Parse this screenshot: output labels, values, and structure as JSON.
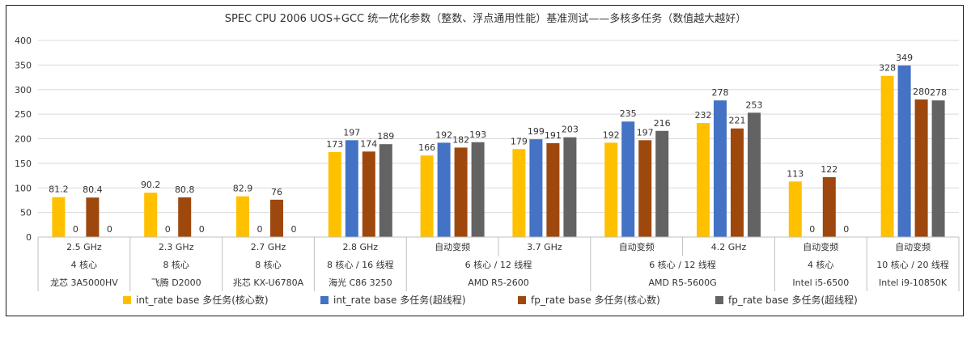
{
  "chart_data": {
    "type": "bar",
    "title": "SPEC CPU 2006 UOS+GCC 统一优化参数（整数、浮点通用性能）基准测试——多核多任务（数值越大越好）",
    "ylim": [
      0,
      400
    ],
    "yticks": [
      "0",
      "50",
      "100",
      "150",
      "200",
      "250",
      "300",
      "350",
      "400"
    ],
    "grid": true,
    "legend_position": "bottom",
    "categories": [
      {
        "freq": "2.5 GHz",
        "cores": "4 核心",
        "cpu": "龙芯 3A5000HV"
      },
      {
        "freq": "2.3 GHz",
        "cores": "8 核心",
        "cpu": "飞腾 D2000"
      },
      {
        "freq": "2.7 GHz",
        "cores": "8 核心",
        "cpu": "兆芯 KX-U6780A"
      },
      {
        "freq": "2.8 GHz",
        "cores": "8 核心 / 16 线程",
        "cpu": "海光 C86 3250"
      },
      {
        "freq": "自动变频",
        "cores": "",
        "cpu": ""
      },
      {
        "freq": "3.7 GHz",
        "cores": "",
        "cpu": ""
      },
      {
        "freq": "自动变频",
        "cores": "",
        "cpu": ""
      },
      {
        "freq": "4.2 GHz",
        "cores": "",
        "cpu": ""
      },
      {
        "freq": "自动变频",
        "cores": "4 核心",
        "cpu": "Intel i5-6500"
      },
      {
        "freq": "自动变频",
        "cores": "10 核心 / 20 线程",
        "cpu": "Intel i9-10850K"
      }
    ],
    "groups": [
      {
        "from": 4,
        "to": 5,
        "cores": "6 核心 / 12 线程",
        "cpu": "AMD R5-2600"
      },
      {
        "from": 6,
        "to": 7,
        "cores": "6 核心 / 12 线程",
        "cpu": "AMD R5-5600G"
      }
    ],
    "series": [
      {
        "name": "int_rate base 多任务(核心数)",
        "color": "#FFC000",
        "values": [
          81.2,
          90.2,
          82.9,
          173,
          166,
          179,
          192,
          232,
          113,
          328
        ],
        "labels": [
          "81.2",
          "90.2",
          "82.9",
          "173",
          "166",
          "179",
          "192",
          "232",
          "113",
          "328"
        ]
      },
      {
        "name": "int_rate base 多任务(超线程)",
        "color": "#4472C4",
        "values": [
          0,
          0,
          0,
          197,
          192,
          199,
          235,
          278,
          0,
          349
        ],
        "labels": [
          "0",
          "0",
          "0",
          "197",
          "192",
          "199",
          "235",
          "278",
          "0",
          "349"
        ]
      },
      {
        "name": "fp_rate base 多任务(核心数)",
        "color": "#9E480E",
        "values": [
          80.4,
          80.8,
          76,
          174,
          182,
          191,
          197,
          221,
          122,
          280
        ],
        "labels": [
          "80.4",
          "80.8",
          "76",
          "174",
          "182",
          "191",
          "197",
          "221",
          "122",
          "280"
        ]
      },
      {
        "name": "fp_rate base 多任务(超线程)",
        "color": "#636363",
        "values": [
          0,
          0,
          0,
          189,
          193,
          203,
          216,
          253,
          0,
          278
        ],
        "labels": [
          "0",
          "0",
          "0",
          "189",
          "193",
          "203",
          "216",
          "253",
          "0",
          "278"
        ]
      }
    ]
  }
}
